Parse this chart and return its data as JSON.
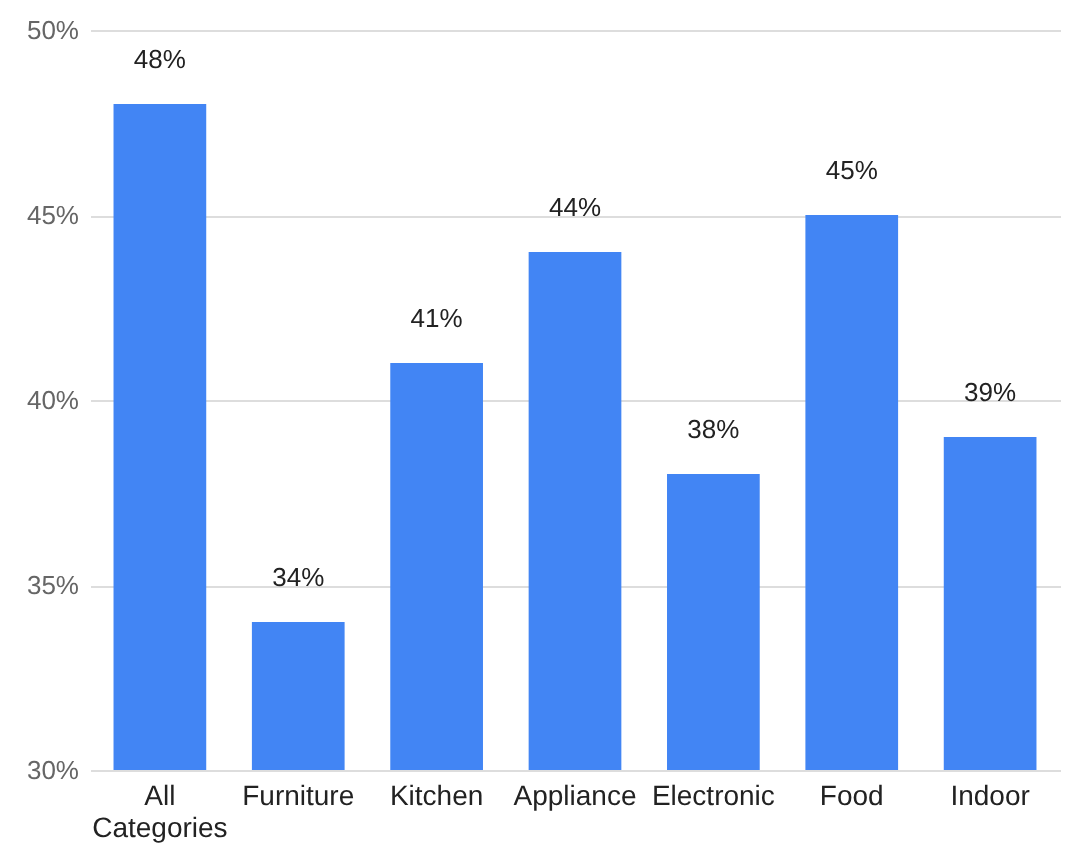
{
  "chart_data": {
    "type": "bar",
    "categories": [
      "All Categories",
      "Furniture",
      "Kitchen",
      "Appliance",
      "Electronic",
      "Food",
      "Indoor"
    ],
    "values": [
      48,
      34,
      41,
      44,
      38,
      45,
      39
    ],
    "value_labels": [
      "48%",
      "34%",
      "41%",
      "44%",
      "38%",
      "45%",
      "39%"
    ],
    "color": "#4285f4",
    "ylim": [
      30,
      50
    ],
    "yticks": [
      {
        "value": 30,
        "label": "30%"
      },
      {
        "value": 35,
        "label": "35%"
      },
      {
        "value": 40,
        "label": "40%"
      },
      {
        "value": 45,
        "label": "45%"
      },
      {
        "value": 50,
        "label": "50%"
      }
    ],
    "grid": "y"
  }
}
